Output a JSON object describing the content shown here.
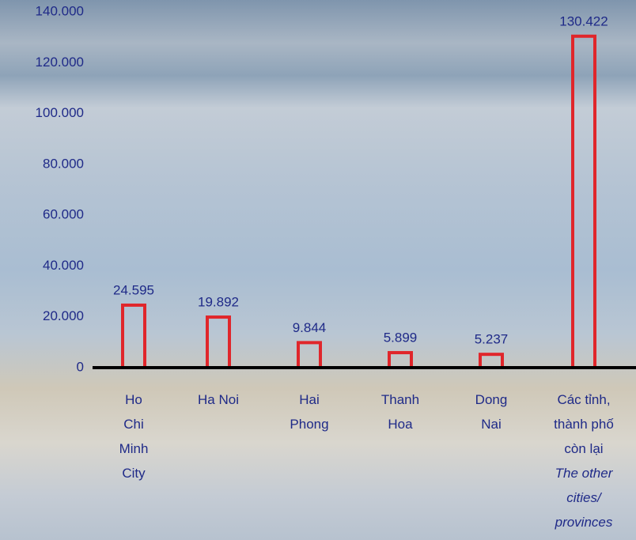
{
  "chart_data": {
    "type": "bar",
    "categories": [
      "Ho Chi Minh City",
      "Ha Noi",
      "Hai Phong",
      "Thanh Hoa",
      "Dong Nai",
      "Các tỉnh, thành phố còn lại"
    ],
    "last_category_english": "The other cities/ provinces",
    "values": [
      24595,
      19892,
      9844,
      5899,
      5237,
      130422
    ],
    "value_labels": [
      "24.595",
      "19.892",
      "9.844",
      "5.899",
      "5.237",
      "130.422"
    ],
    "color": "#e0262b",
    "ylim": [
      0,
      140000
    ],
    "yticks": [
      0,
      {
        "value": 20000,
        "label": "20.000"
      },
      {
        "value": 40000,
        "label": "40.000"
      },
      {
        "value": 60000,
        "label": "60.000"
      },
      {
        "value": 80000,
        "label": "80.000"
      },
      {
        "value": 100000,
        "label": "100.000"
      },
      {
        "value": 120000,
        "label": "120.000"
      },
      {
        "value": 140000,
        "label": "140.000"
      }
    ],
    "grid": false
  }
}
